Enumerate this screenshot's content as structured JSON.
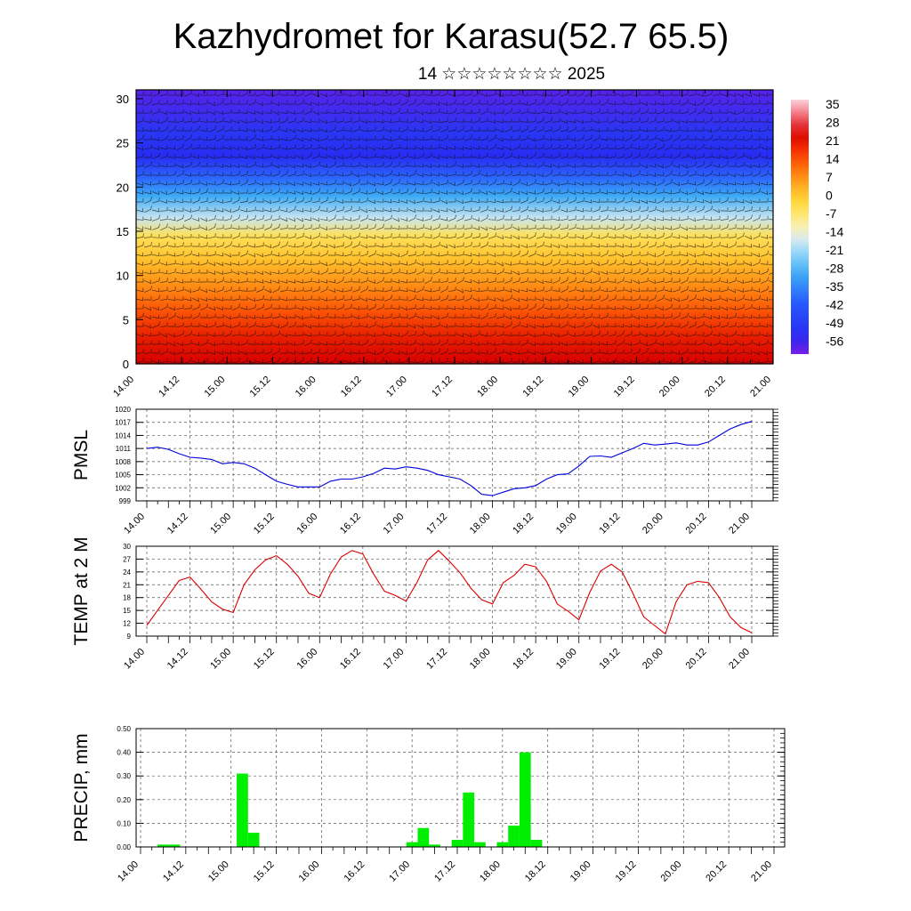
{
  "header": {
    "title": "Kazhydromet for Karasu(52.7 65.5)",
    "subtitle": "14 ☆☆☆☆☆☆☆☆ 2025"
  },
  "x_ticks": [
    "14.00",
    "14.12",
    "15.00",
    "15.12",
    "16.00",
    "16.12",
    "17.00",
    "17.12",
    "18.00",
    "18.12",
    "19.00",
    "19.12",
    "20.00",
    "20.12",
    "21.00"
  ],
  "chart_data": [
    {
      "type": "heatmap",
      "title": "",
      "xlabel": "",
      "ylabel": "",
      "ylim": [
        0,
        31
      ],
      "y_ticks": [
        0,
        5,
        10,
        15,
        20,
        25,
        30
      ],
      "x_ticks": [
        "14.00",
        "14.12",
        "15.00",
        "15.12",
        "16.00",
        "16.12",
        "17.00",
        "17.12",
        "18.00",
        "18.12",
        "19.00",
        "19.12",
        "20.00",
        "20.12",
        "21.00"
      ],
      "colorbar_labels": [
        "35",
        "28",
        "21",
        "14",
        "7",
        "0",
        "-7",
        "-14",
        "-21",
        "-28",
        "-35",
        "-42",
        "-49",
        "-56"
      ],
      "colorbar_range": [
        -63,
        42
      ],
      "temperature_profile": [
        {
          "level": 0,
          "value": 28
        },
        {
          "level": 3,
          "value": 24
        },
        {
          "level": 6,
          "value": 17
        },
        {
          "level": 9,
          "value": 10
        },
        {
          "level": 12,
          "value": 3
        },
        {
          "level": 14.5,
          "value": -3
        },
        {
          "level": 16.5,
          "value": -17
        },
        {
          "level": 19,
          "value": -30
        },
        {
          "level": 21,
          "value": -40
        },
        {
          "level": 23.5,
          "value": -55
        },
        {
          "level": 26,
          "value": -52
        },
        {
          "level": 31,
          "value": -60
        }
      ],
      "overlay": "wind barbs"
    },
    {
      "type": "line",
      "ylabel": "PMSL",
      "ylim": [
        999,
        1020
      ],
      "y_ticks": [
        999,
        1002,
        1005,
        1008,
        1011,
        1014,
        1017,
        1020
      ],
      "x_ticks": [
        "14.00",
        "14.12",
        "15.00",
        "15.12",
        "16.00",
        "16.12",
        "17.00",
        "17.12",
        "18.00",
        "18.12",
        "19.00",
        "19.12",
        "20.00",
        "20.12",
        "21.00"
      ],
      "color": "#0000dd",
      "values": [
        1011,
        1011.3,
        1010.8,
        1009.8,
        1009,
        1008.8,
        1008.5,
        1007.5,
        1007.8,
        1007.5,
        1006.5,
        1005,
        1003.5,
        1002.8,
        1002.2,
        1002.2,
        1002.2,
        1003.5,
        1004,
        1004,
        1004.5,
        1005.3,
        1006.5,
        1006.3,
        1006.8,
        1006.5,
        1006,
        1005,
        1004.5,
        1004,
        1002.5,
        1000.5,
        1000.2,
        1001,
        1001.8,
        1002,
        1002.5,
        1004,
        1005,
        1005.2,
        1007,
        1009.2,
        1009.3,
        1009,
        1010,
        1011,
        1012.2,
        1011.8,
        1012,
        1012.3,
        1011.8,
        1011.8,
        1012.5,
        1014,
        1015.5,
        1016.5,
        1017.2
      ],
      "grid": true
    },
    {
      "type": "line",
      "ylabel": "TEMP at 2 M",
      "ylim": [
        9,
        30
      ],
      "y_ticks": [
        9,
        12,
        15,
        18,
        21,
        24,
        27,
        30
      ],
      "x_ticks": [
        "14.00",
        "14.12",
        "15.00",
        "15.12",
        "16.00",
        "16.12",
        "17.00",
        "17.12",
        "18.00",
        "18.12",
        "19.00",
        "19.12",
        "20.00",
        "20.12",
        "21.00"
      ],
      "color": "#dd0000",
      "values": [
        11.5,
        15,
        18.5,
        22,
        22.8,
        20,
        17,
        15.3,
        14.5,
        21,
        24.5,
        26.8,
        27.8,
        25.8,
        23,
        19,
        18,
        23.5,
        27.5,
        29,
        28.2,
        23.5,
        19.5,
        18.5,
        17.2,
        21.5,
        26.8,
        29,
        26.5,
        23.8,
        20.2,
        17.5,
        16.5,
        21.5,
        23.2,
        25.8,
        25.2,
        21.8,
        16.5,
        14.8,
        12.8,
        19.2,
        24.2,
        25.8,
        24,
        19,
        13.5,
        11.5,
        9.5,
        17,
        21,
        21.8,
        21.5,
        18,
        13.5,
        11,
        9.8
      ],
      "grid": true
    },
    {
      "type": "bar",
      "ylabel": "PRECIP, mm",
      "ylim": [
        0,
        0.5
      ],
      "y_ticks": [
        "0.00",
        "0.10",
        "0.20",
        "0.30",
        "0.40",
        "0.50"
      ],
      "x_ticks": [
        "14.00",
        "14.12",
        "15.00",
        "15.12",
        "16.00",
        "16.12",
        "17.00",
        "17.12",
        "18.00",
        "18.12",
        "19.00",
        "19.12",
        "20.00",
        "20.12",
        "21.00"
      ],
      "color": "#00ee00",
      "bars": [
        {
          "t": 2,
          "v": 0.01
        },
        {
          "t": 3,
          "v": 0.01
        },
        {
          "t": 9,
          "v": 0.31
        },
        {
          "t": 10,
          "v": 0.06
        },
        {
          "t": 24,
          "v": 0.02
        },
        {
          "t": 25,
          "v": 0.08
        },
        {
          "t": 26,
          "v": 0.01
        },
        {
          "t": 28,
          "v": 0.03
        },
        {
          "t": 29,
          "v": 0.23
        },
        {
          "t": 30,
          "v": 0.02
        },
        {
          "t": 32,
          "v": 0.02
        },
        {
          "t": 33,
          "v": 0.09
        },
        {
          "t": 34,
          "v": 0.4
        },
        {
          "t": 35,
          "v": 0.03
        }
      ],
      "grid": true
    }
  ]
}
